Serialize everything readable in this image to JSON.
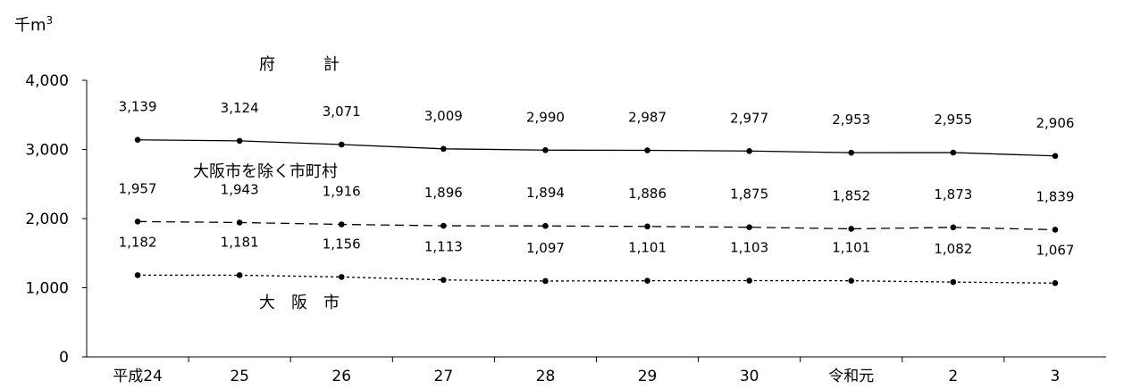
{
  "chart_data": {
    "type": "line",
    "unit": "千m",
    "unit_sup": "3",
    "categories": [
      "平成24",
      "25",
      "26",
      "27",
      "28",
      "29",
      "30",
      "令和元",
      "2",
      "3"
    ],
    "ylim": [
      0,
      4000
    ],
    "yticks": [
      0,
      1000,
      2000,
      3000,
      4000
    ],
    "ytick_labels": [
      "0",
      "1,000",
      "2,000",
      "3,000",
      "4,000"
    ],
    "grid": false,
    "series": [
      {
        "name": "府　　　計",
        "style": "solid",
        "values": [
          3139,
          3124,
          3071,
          3009,
          2990,
          2987,
          2977,
          2953,
          2955,
          2906
        ],
        "labels": [
          "3,139",
          "3,124",
          "3,071",
          "3,009",
          "2,990",
          "2,987",
          "2,977",
          "2,953",
          "2,955",
          "2,906"
        ]
      },
      {
        "name": "大阪市を除く市町村",
        "style": "dashed",
        "values": [
          1957,
          1943,
          1916,
          1896,
          1894,
          1886,
          1875,
          1852,
          1873,
          1839
        ],
        "labels": [
          "1,957",
          "1,943",
          "1,916",
          "1,896",
          "1,894",
          "1,886",
          "1,875",
          "1,852",
          "1,873",
          "1,839"
        ]
      },
      {
        "name": "大　阪　市",
        "style": "dotted",
        "values": [
          1182,
          1181,
          1156,
          1113,
          1097,
          1101,
          1103,
          1101,
          1082,
          1067
        ],
        "labels": [
          "1,182",
          "1,181",
          "1,156",
          "1,113",
          "1,097",
          "1,101",
          "1,103",
          "1,101",
          "1,082",
          "1,067"
        ]
      }
    ]
  }
}
